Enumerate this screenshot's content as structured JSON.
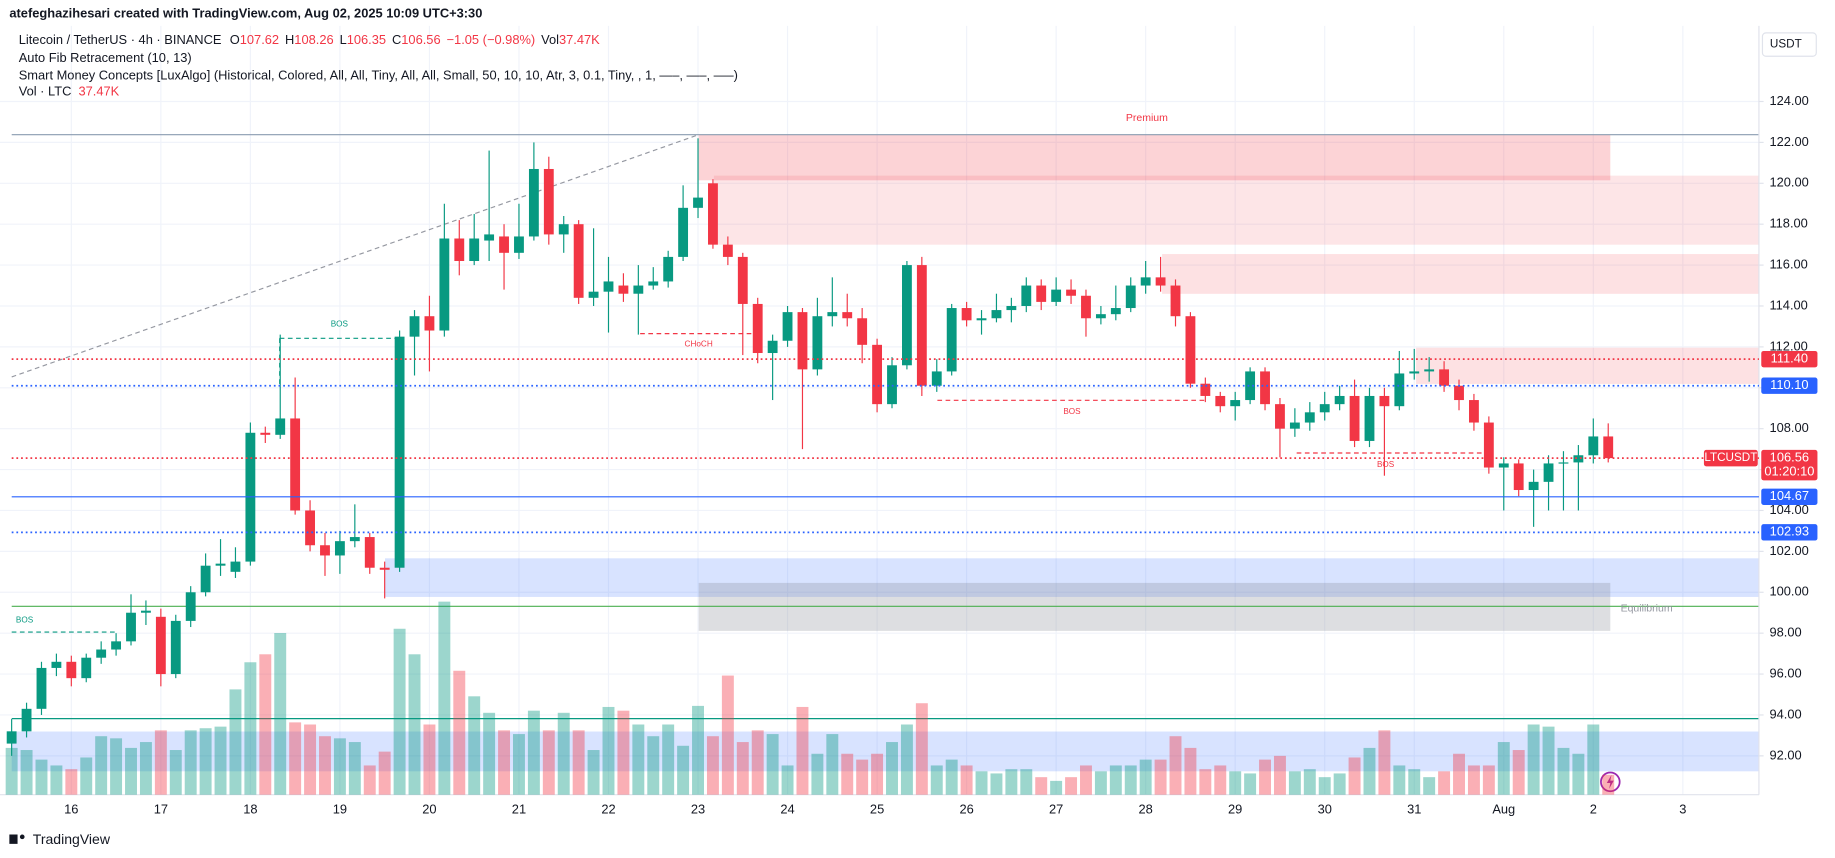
{
  "header": {
    "attribution": "atefeghazihesari created with TradingView.com, Aug 02, 2025 10:09 UTC+3:30",
    "symbol": "Litecoin / TetherUS · 4h · BINANCE",
    "ohlc": [
      {
        "key": "O",
        "value": "107.62"
      },
      {
        "key": "H",
        "value": "108.26"
      },
      {
        "key": "L",
        "value": "106.35"
      },
      {
        "key": "C",
        "value": "106.56"
      }
    ],
    "change": "−1.05 (−0.98%)",
    "vol_key": "Vol",
    "vol_value": "37.47K",
    "indicators": [
      "Auto Fib Retracement (10, 13)",
      "Smart Money Concepts [LuxAlgo] (Historical, Colored, All, All, Tiny, All, All, Small, 50, 10, 10, Atr, 3, 0.1, Tiny, , 1, —–, —–, —–)"
    ],
    "volume_legend": "Vol · LTC",
    "volume_legend_value": "37.47K",
    "currency": "USDT",
    "brand": "TradingView"
  },
  "chart_data": {
    "type": "candlestick",
    "up_color": "#089981",
    "down_color": "#f23645",
    "grid": true,
    "ylim": [
      90.1,
      127.7
    ],
    "yticks": [
      {
        "value": 92,
        "label": "92.00"
      },
      {
        "value": 94,
        "label": "94.00"
      },
      {
        "value": 96,
        "label": "96.00"
      },
      {
        "value": 98,
        "label": "98.00"
      },
      {
        "value": 100,
        "label": "100.00"
      },
      {
        "value": 102,
        "label": "102.00"
      },
      {
        "value": 104,
        "label": "104.00"
      },
      {
        "value": 106,
        "label": "106.00"
      },
      {
        "value": 108,
        "label": "108.00"
      },
      {
        "value": 110,
        "label": "110.00"
      },
      {
        "value": 112,
        "label": "112.00"
      },
      {
        "value": 114,
        "label": "114.00"
      },
      {
        "value": 116,
        "label": "116.00"
      },
      {
        "value": 118,
        "label": "118.00"
      },
      {
        "value": 120,
        "label": "120.00"
      },
      {
        "value": 122,
        "label": "122.00"
      },
      {
        "value": 124,
        "label": "124.00"
      }
    ],
    "xlim": [
      -0.78,
      117.1
    ],
    "xticks": [
      {
        "value": 4,
        "label": "16"
      },
      {
        "value": 10,
        "label": "17"
      },
      {
        "value": 16,
        "label": "18"
      },
      {
        "value": 22,
        "label": "19"
      },
      {
        "value": 28,
        "label": "20"
      },
      {
        "value": 34,
        "label": "21"
      },
      {
        "value": 40,
        "label": "22"
      },
      {
        "value": 46,
        "label": "23"
      },
      {
        "value": 52,
        "label": "24"
      },
      {
        "value": 58,
        "label": "25"
      },
      {
        "value": 64,
        "label": "26"
      },
      {
        "value": 70,
        "label": "27"
      },
      {
        "value": 76,
        "label": "28"
      },
      {
        "value": 82,
        "label": "29"
      },
      {
        "value": 88,
        "label": "30"
      },
      {
        "value": 94,
        "label": "31"
      },
      {
        "value": 100,
        "label": "Aug"
      },
      {
        "value": 106,
        "label": "2"
      },
      {
        "value": 112,
        "label": "3"
      }
    ],
    "open": [
      92.6,
      93.2,
      94.3,
      96.3,
      96.6,
      95.8,
      96.8,
      97.2,
      97.6,
      99.0,
      98.8,
      96.0,
      98.6,
      100.0,
      101.3,
      101.0,
      101.5,
      107.8,
      107.7,
      108.5,
      104.0,
      102.3,
      101.8,
      102.5,
      102.7,
      101.2,
      101.2,
      112.5,
      113.5,
      112.8,
      117.3,
      116.2,
      117.2,
      117.4,
      116.6,
      117.4,
      120.7,
      117.5,
      118.0,
      114.4,
      114.7,
      115.0,
      114.6,
      115.0,
      115.2,
      116.4,
      118.8,
      120.0,
      117.0,
      116.4,
      114.1,
      111.7,
      112.3,
      113.7,
      110.9,
      113.5,
      113.7,
      113.4,
      112.1,
      109.2,
      111.1,
      116.0,
      110.1,
      110.8,
      113.9,
      113.3,
      113.4,
      113.8,
      114.0,
      115.0,
      114.2,
      114.8,
      114.5,
      113.4,
      113.6,
      113.9,
      115.0,
      115.4,
      115.0,
      113.5,
      110.2,
      109.6,
      109.1,
      109.4,
      110.8,
      109.2,
      108.0,
      108.3,
      108.8,
      109.2,
      109.6,
      107.4,
      109.6,
      109.1,
      110.7,
      110.8,
      110.9,
      110.1,
      109.4,
      108.3,
      106.1,
      106.3,
      105.0,
      105.4,
      106.3,
      106.35,
      106.7,
      107.62
    ],
    "high": [
      93.8,
      94.6,
      96.6,
      97.0,
      96.9,
      97.0,
      97.6,
      98.0,
      99.9,
      99.6,
      99.2,
      98.9,
      100.3,
      101.9,
      102.6,
      102.2,
      108.3,
      108.1,
      112.6,
      110.5,
      104.5,
      102.9,
      103.0,
      104.3,
      102.9,
      101.5,
      112.8,
      113.8,
      114.5,
      119.0,
      118.2,
      118.5,
      121.6,
      118.0,
      119.0,
      122.0,
      121.3,
      118.4,
      118.2,
      117.8,
      116.4,
      115.6,
      116.0,
      115.9,
      116.7,
      119.9,
      122.2,
      120.2,
      117.4,
      116.6,
      114.4,
      112.6,
      114.0,
      113.9,
      114.4,
      115.4,
      114.6,
      113.9,
      112.4,
      111.5,
      116.2,
      116.4,
      111.4,
      114.1,
      114.2,
      113.8,
      114.6,
      114.4,
      115.4,
      115.3,
      115.4,
      115.3,
      114.8,
      114.0,
      115.0,
      115.4,
      116.2,
      116.4,
      115.3,
      113.7,
      110.5,
      109.8,
      109.8,
      111.0,
      111.0,
      109.5,
      109.0,
      109.3,
      109.8,
      110.1,
      110.4,
      110.0,
      110.0,
      111.8,
      111.9,
      111.5,
      111.3,
      110.4,
      109.7,
      108.6,
      106.6,
      106.5,
      106.0,
      106.7,
      106.9,
      107.2,
      108.5,
      108.26
    ],
    "low": [
      92.0,
      92.9,
      94.0,
      95.9,
      95.4,
      95.6,
      96.5,
      96.9,
      97.4,
      98.4,
      95.4,
      95.8,
      98.3,
      99.8,
      100.8,
      100.7,
      101.3,
      107.3,
      107.5,
      103.8,
      102.0,
      100.8,
      100.9,
      102.2,
      100.9,
      99.7,
      101.0,
      110.6,
      110.8,
      112.5,
      115.5,
      116.0,
      116.2,
      114.8,
      116.3,
      117.2,
      117.0,
      116.6,
      114.1,
      114.0,
      112.7,
      114.2,
      112.6,
      114.8,
      114.9,
      116.2,
      118.3,
      116.8,
      116.0,
      111.6,
      111.2,
      109.4,
      112.0,
      107.0,
      110.6,
      113.0,
      113.0,
      111.2,
      108.8,
      109.0,
      110.9,
      109.6,
      109.8,
      110.6,
      113.0,
      112.6,
      113.2,
      113.2,
      113.7,
      113.8,
      114.0,
      114.1,
      112.5,
      113.1,
      113.3,
      113.7,
      114.6,
      114.7,
      113.0,
      110.0,
      109.3,
      108.8,
      108.4,
      109.2,
      108.9,
      106.6,
      107.6,
      107.9,
      108.4,
      108.9,
      107.1,
      107.1,
      105.7,
      108.9,
      110.4,
      110.3,
      109.8,
      108.9,
      107.9,
      105.8,
      104.0,
      104.7,
      103.2,
      104.0,
      104.0,
      104.0,
      106.3,
      106.35
    ],
    "close": [
      93.2,
      94.3,
      96.3,
      96.6,
      95.8,
      96.8,
      97.2,
      97.6,
      99.0,
      99.1,
      96.0,
      98.6,
      100.0,
      101.3,
      101.4,
      101.5,
      107.8,
      107.7,
      108.5,
      104.0,
      102.3,
      101.8,
      102.5,
      102.7,
      101.2,
      101.1,
      112.5,
      113.5,
      112.8,
      117.3,
      116.2,
      117.3,
      117.5,
      116.6,
      117.4,
      120.7,
      117.5,
      118.0,
      114.4,
      114.7,
      115.2,
      114.6,
      115.0,
      115.2,
      116.4,
      118.8,
      119.3,
      117.0,
      116.4,
      114.1,
      111.7,
      112.3,
      113.7,
      110.9,
      113.5,
      113.7,
      113.4,
      112.1,
      109.2,
      111.1,
      116.0,
      110.1,
      110.8,
      113.9,
      113.3,
      113.4,
      113.8,
      114.0,
      115.0,
      114.2,
      114.8,
      114.5,
      113.4,
      113.6,
      113.9,
      115.0,
      115.4,
      115.0,
      113.5,
      110.2,
      109.6,
      109.1,
      109.4,
      110.8,
      109.2,
      108.0,
      108.3,
      108.8,
      109.2,
      109.6,
      107.4,
      109.6,
      109.1,
      110.7,
      110.8,
      110.9,
      110.1,
      109.4,
      108.3,
      106.1,
      106.3,
      105.0,
      105.4,
      106.3,
      106.35,
      106.7,
      107.62,
      106.56
    ],
    "volume": [
      88,
      84,
      66,
      55,
      48,
      70,
      110,
      106,
      88,
      99,
      121,
      84,
      121,
      125,
      128,
      198,
      249,
      264,
      304,
      136,
      132,
      110,
      106,
      99,
      55,
      81,
      312,
      264,
      132,
      363,
      233,
      185,
      154,
      121,
      114,
      158,
      121,
      154,
      121,
      84,
      165,
      158,
      132,
      110,
      132,
      92,
      167,
      110,
      224,
      99,
      121,
      114,
      55,
      165,
      77,
      114,
      77,
      66,
      77,
      99,
      132,
      172,
      55,
      66,
      55,
      44,
      40,
      48,
      48,
      33,
      26,
      33,
      55,
      44,
      55,
      55,
      66,
      66,
      110,
      88,
      48,
      55,
      44,
      40,
      66,
      73,
      44,
      48,
      33,
      40,
      70,
      88,
      121,
      55,
      48,
      33,
      44,
      77,
      55,
      55,
      99,
      84,
      132,
      128,
      88,
      77,
      132,
      37.47
    ],
    "price_lines": [
      {
        "value": 111.4,
        "label": "111.40",
        "color": "#f23645",
        "style": "dotted"
      },
      {
        "value": 110.1,
        "label": "110.10",
        "color": "#2962ff",
        "style": "dotted"
      },
      {
        "value": 106.56,
        "label": "106.56",
        "color": "#f23645",
        "style": "dotted"
      },
      {
        "value": 104.67,
        "label": "104.67",
        "color": "#2962ff",
        "style": "solid"
      },
      {
        "value": 102.93,
        "label": "102.93",
        "color": "#2962ff",
        "style": "dotted"
      }
    ],
    "last_symbol": "LTCUSDT",
    "countdown": "01:20:10",
    "annotations": {
      "premium": "Premium",
      "equilibrium": "Equilibrium",
      "bos_1": "BOS",
      "choch": "CHoCH",
      "bos_2": "BOS",
      "bos_3": "BOS",
      "bos_4": "BOS"
    }
  }
}
